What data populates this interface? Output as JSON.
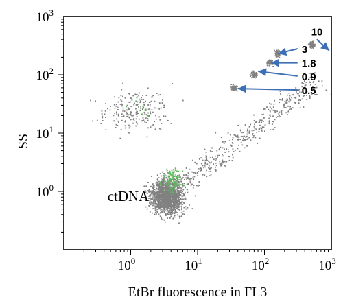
{
  "chart_data": {
    "type": "scatter",
    "xlabel": "EtBr fluorescence in FL3",
    "ylabel": "SS",
    "xscale": "log",
    "yscale": "log",
    "xlim": [
      0.1,
      1000
    ],
    "ylim": [
      0.1,
      1000
    ],
    "x_ticks": [
      {
        "value": 1,
        "base": "10",
        "exp": "0"
      },
      {
        "value": 10,
        "base": "10",
        "exp": "1"
      },
      {
        "value": 100,
        "base": "10",
        "exp": "2"
      },
      {
        "value": 1000,
        "base": "10",
        "exp": "3"
      }
    ],
    "y_ticks": [
      {
        "value": 1,
        "base": "10",
        "exp": "0"
      },
      {
        "value": 10,
        "base": "10",
        "exp": "1"
      },
      {
        "value": 100,
        "base": "10",
        "exp": "2"
      },
      {
        "value": 1000,
        "base": "10",
        "exp": "3"
      }
    ],
    "grid": false,
    "colors": {
      "points": "#808080",
      "highlight_points": "#5cb85c",
      "arrows": "#3d6fb5"
    },
    "clusters": [
      {
        "label": "ctDNA",
        "x": 3.5,
        "y": 0.8
      },
      {
        "label": "0.5",
        "x": 35,
        "y": 60
      },
      {
        "label": "0.9",
        "x": 70,
        "y": 100
      },
      {
        "label": "1.8",
        "x": 120,
        "y": 160
      },
      {
        "label": "3",
        "x": 160,
        "y": 230
      },
      {
        "label": "10",
        "x": 520,
        "y": 330
      }
    ],
    "annotations": [
      {
        "text": "ctDNA",
        "x": 0.45,
        "y": 0.8
      },
      {
        "text": "10",
        "x": 500,
        "y": 560,
        "arrow_to": [
          930,
          260
        ]
      },
      {
        "text": "3",
        "x": 360,
        "y": 280,
        "arrow_to": [
          160,
          230
        ]
      },
      {
        "text": "1.8",
        "x": 360,
        "y": 160,
        "arrow_to": [
          125,
          160
        ]
      },
      {
        "text": "0.9",
        "x": 360,
        "y": 95,
        "arrow_to": [
          80,
          115
        ]
      },
      {
        "text": "0.5",
        "x": 360,
        "y": 55,
        "arrow_to": [
          40,
          58
        ]
      }
    ]
  }
}
